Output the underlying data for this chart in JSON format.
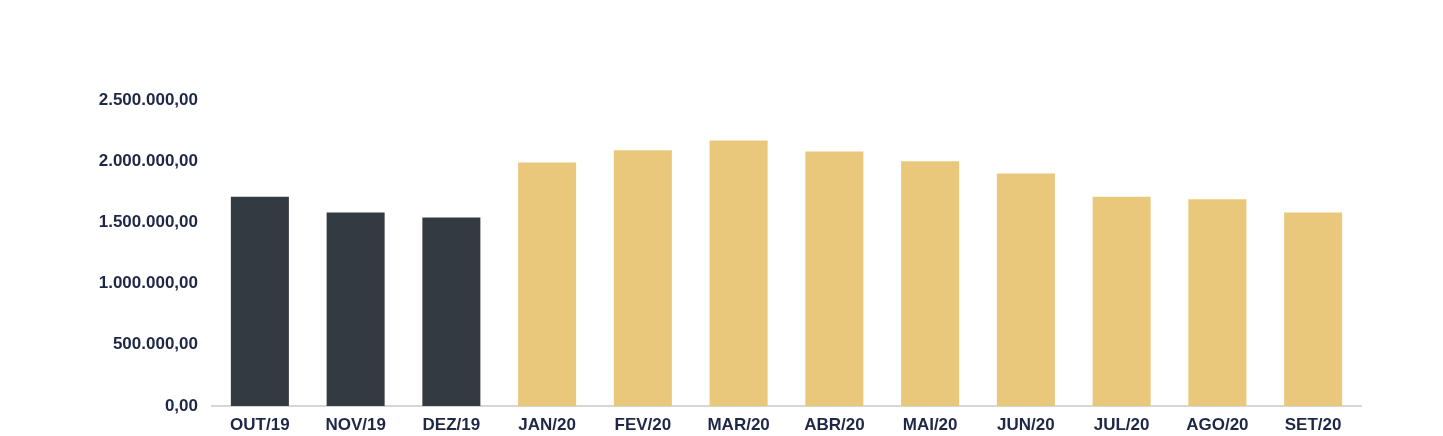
{
  "chart_data": {
    "type": "bar",
    "categories": [
      "OUT/19",
      "NOV/19",
      "DEZ/19",
      "JAN/20",
      "FEV/20",
      "MAR/20",
      "ABR/20",
      "MAI/20",
      "JUN/20",
      "JUL/20",
      "AGO/20",
      "SET/20"
    ],
    "values": [
      1710000,
      1580000,
      1540000,
      1990000,
      2090000,
      2170000,
      2080000,
      2000000,
      1900000,
      1710000,
      1690000,
      1580000
    ],
    "colors": [
      "#343a42",
      "#343a42",
      "#343a42",
      "#e9c87c",
      "#e9c87c",
      "#e9c87c",
      "#e9c87c",
      "#e9c87c",
      "#e9c87c",
      "#e9c87c",
      "#e9c87c",
      "#e9c87c"
    ],
    "ylim": [
      0,
      2500000
    ],
    "yticks": [
      {
        "value": 0,
        "label": "0,00"
      },
      {
        "value": 500000,
        "label": "500.000,00"
      },
      {
        "value": 1000000,
        "label": "1.000.000,00"
      },
      {
        "value": 1500000,
        "label": "1.500.000,00"
      },
      {
        "value": 2000000,
        "label": "2.000.000,00"
      },
      {
        "value": 2500000,
        "label": "2.500.000,00"
      }
    ]
  }
}
